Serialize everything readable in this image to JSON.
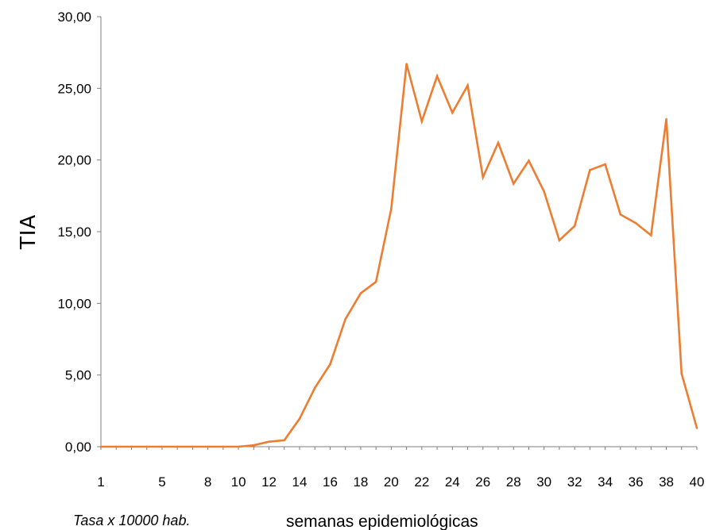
{
  "chart_data": {
    "type": "line",
    "ylabel": "TIA",
    "xlabel": "semanas epidemiológicas",
    "footnote": "Tasa x 10000 hab.",
    "ylim": [
      0,
      30
    ],
    "yticks": [
      "0,00",
      "5,00",
      "10,00",
      "15,00",
      "20,00",
      "25,00",
      "30,00"
    ],
    "xticks": [
      "1",
      "5",
      "8",
      "10",
      "12",
      "14",
      "16",
      "18",
      "20",
      "22",
      "24",
      "26",
      "28",
      "30",
      "32",
      "34",
      "36",
      "38",
      "40"
    ],
    "grid": false,
    "legend": "none",
    "color": "#ED7D31",
    "x": [
      1,
      2,
      3,
      4,
      5,
      6,
      7,
      8,
      9,
      10,
      11,
      12,
      13,
      14,
      15,
      16,
      17,
      18,
      19,
      20,
      21,
      22,
      23,
      24,
      25,
      26,
      27,
      28,
      29,
      30,
      31,
      32,
      33,
      34,
      35,
      36,
      37,
      38,
      39,
      40
    ],
    "series": [
      {
        "values": [
          0.0,
          0.0,
          0.0,
          0.0,
          0.0,
          0.0,
          0.0,
          0.0,
          0.0,
          0.0,
          0.1,
          0.35,
          0.45,
          1.95,
          4.1,
          5.75,
          8.9,
          10.7,
          11.5,
          16.6,
          26.7,
          22.7,
          25.85,
          23.3,
          25.2,
          18.8,
          21.2,
          18.35,
          19.95,
          17.8,
          14.4,
          15.4,
          19.3,
          19.7,
          16.2,
          15.6,
          14.75,
          22.85,
          5.1,
          1.3
        ]
      }
    ]
  }
}
